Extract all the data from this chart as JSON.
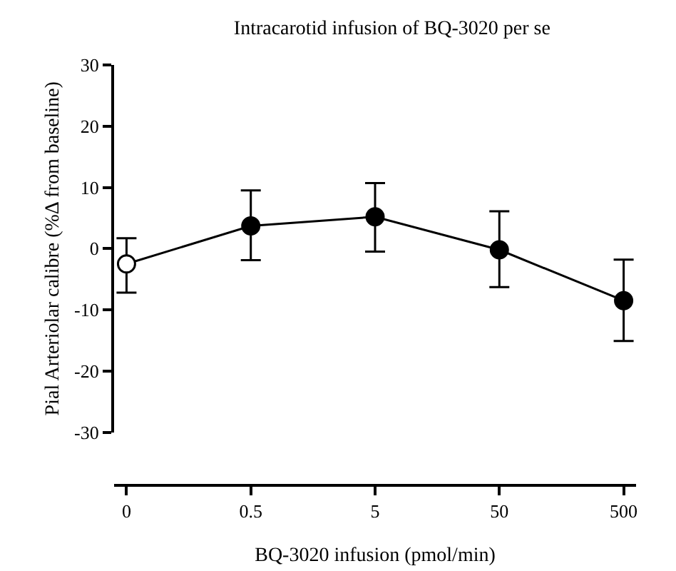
{
  "chart_data": {
    "type": "line",
    "title": "Intracarotid infusion of BQ-3020 per se",
    "xlabel": "BQ-3020 infusion (pmol/min)",
    "ylabel": "Pial Arteriolar calibre (%Δ from baseline)",
    "categories": [
      "0",
      "0.5",
      "5",
      "50",
      "500"
    ],
    "series": [
      {
        "color": "#000000",
        "colors": [
          "#ffffff",
          "#000000",
          "#000000",
          "#000000",
          "#000000"
        ],
        "values": [
          -2.5,
          3.7,
          5.2,
          -0.2,
          -8.5
        ],
        "errors": [
          [
            -7.2,
            1.7
          ],
          [
            -1.9,
            9.5
          ],
          [
            -0.5,
            10.7
          ],
          [
            -6.3,
            6.1
          ],
          [
            -15.1,
            -1.8
          ]
        ]
      }
    ],
    "ylim": [
      -30,
      30
    ],
    "yticks": [
      -30,
      -20,
      -10,
      0,
      10,
      20,
      30
    ],
    "grid": false,
    "marker": "circle",
    "line_style": "solid"
  }
}
